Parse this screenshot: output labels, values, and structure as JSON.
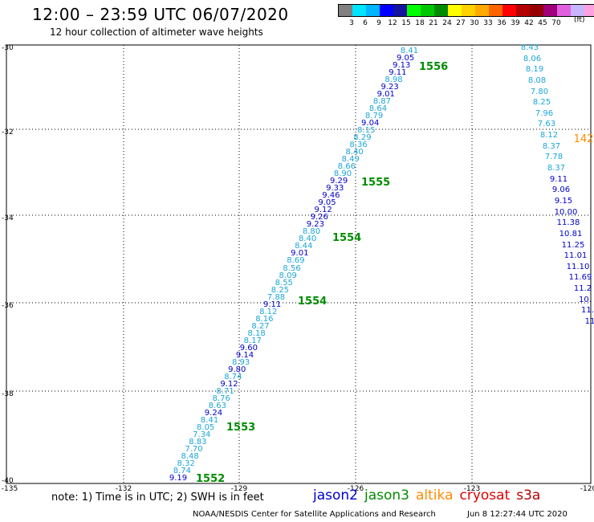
{
  "title": "12:00 – 23:59 UTC 06/07/2020",
  "subtitle": "12 hour collection of altimeter wave heights",
  "legend": {
    "colors": [
      "#808080",
      "#00e5ff",
      "#00b4ff",
      "#0000ff",
      "#1414a0",
      "#00ff00",
      "#00c800",
      "#008c00",
      "#ffff00",
      "#ffd200",
      "#ffaa00",
      "#ff6400",
      "#ff0000",
      "#b40000",
      "#960000",
      "#a0007a",
      "#e060e0",
      "#c8b4ff",
      "#ffa0e0",
      "#000000"
    ],
    "labels": [
      "3",
      "6",
      "9",
      "12",
      "15",
      "18",
      "21",
      "24",
      "27",
      "30",
      "33",
      "36",
      "39",
      "42",
      "45",
      "70"
    ],
    "unit": "(ft)"
  },
  "axes": {
    "y_ticks": [
      "-30",
      "-32",
      "-34",
      "-36",
      "-38",
      "-40"
    ],
    "x_ticks": [
      "-135",
      "-132",
      "-129",
      "-126",
      "-123",
      "-120"
    ]
  },
  "note": "note: 1) Time is in UTC; 2) SWH is in feet",
  "satellites": [
    {
      "name": "jason2",
      "color": "#0000cc"
    },
    {
      "name": "jason3",
      "color": "#008c00"
    },
    {
      "name": "altika",
      "color": "#ff8c00"
    },
    {
      "name": "cryosat",
      "color": "#e00000"
    },
    {
      "name": "s3a",
      "color": "#b40000"
    }
  ],
  "footer": "NOAA/NESDIS Center for Satellite Applications and Research",
  "footer_date": "Jun  8 12:27:44 UTC 2020",
  "pass_labels": [
    "1556",
    "1555",
    "1554",
    "1554",
    "1553",
    "1552"
  ],
  "track_right": [
    "8.43",
    "8.06",
    "8.19",
    "8.08",
    "7.80",
    "8.25",
    "7.96",
    "7.63",
    "8.12",
    "8.37",
    "7.78",
    "8.37",
    "9.11",
    "9.06",
    "9.15",
    "10.00",
    "11.38",
    "10.81",
    "11.25",
    "11.01",
    "11.10",
    "11.69",
    "11.2",
    "10.",
    "11.",
    "11"
  ],
  "track_right_label": "142",
  "track_main": [
    "9.19",
    "8.74",
    "8.32",
    "8.48",
    "7.70",
    "8.83",
    "7.34",
    "8.05",
    "8.41",
    "9.24",
    "8.63",
    "8.76",
    "8.71",
    "9.12",
    "8.74",
    "9.80",
    "8.93",
    "9.14",
    "9.60",
    "8.17",
    "8.18",
    "8.27",
    "8.16",
    "8.12",
    "9.11",
    "7.88",
    "8.25",
    "8.55",
    "8.09",
    "8.56",
    "8.69",
    "9.01",
    "8.44",
    "8.40",
    "8.80",
    "9.23",
    "9.26",
    "9.12",
    "9.05",
    "9.46",
    "9.33",
    "9.29",
    "8.90",
    "8.66",
    "8.49",
    "8.40",
    "8.36",
    "8.29",
    "8.15",
    "9.04",
    "8.79",
    "8.64",
    "8.87",
    "9.01",
    "9.23",
    "8.98",
    "9.11",
    "9.13",
    "9.05",
    "8.41"
  ]
}
